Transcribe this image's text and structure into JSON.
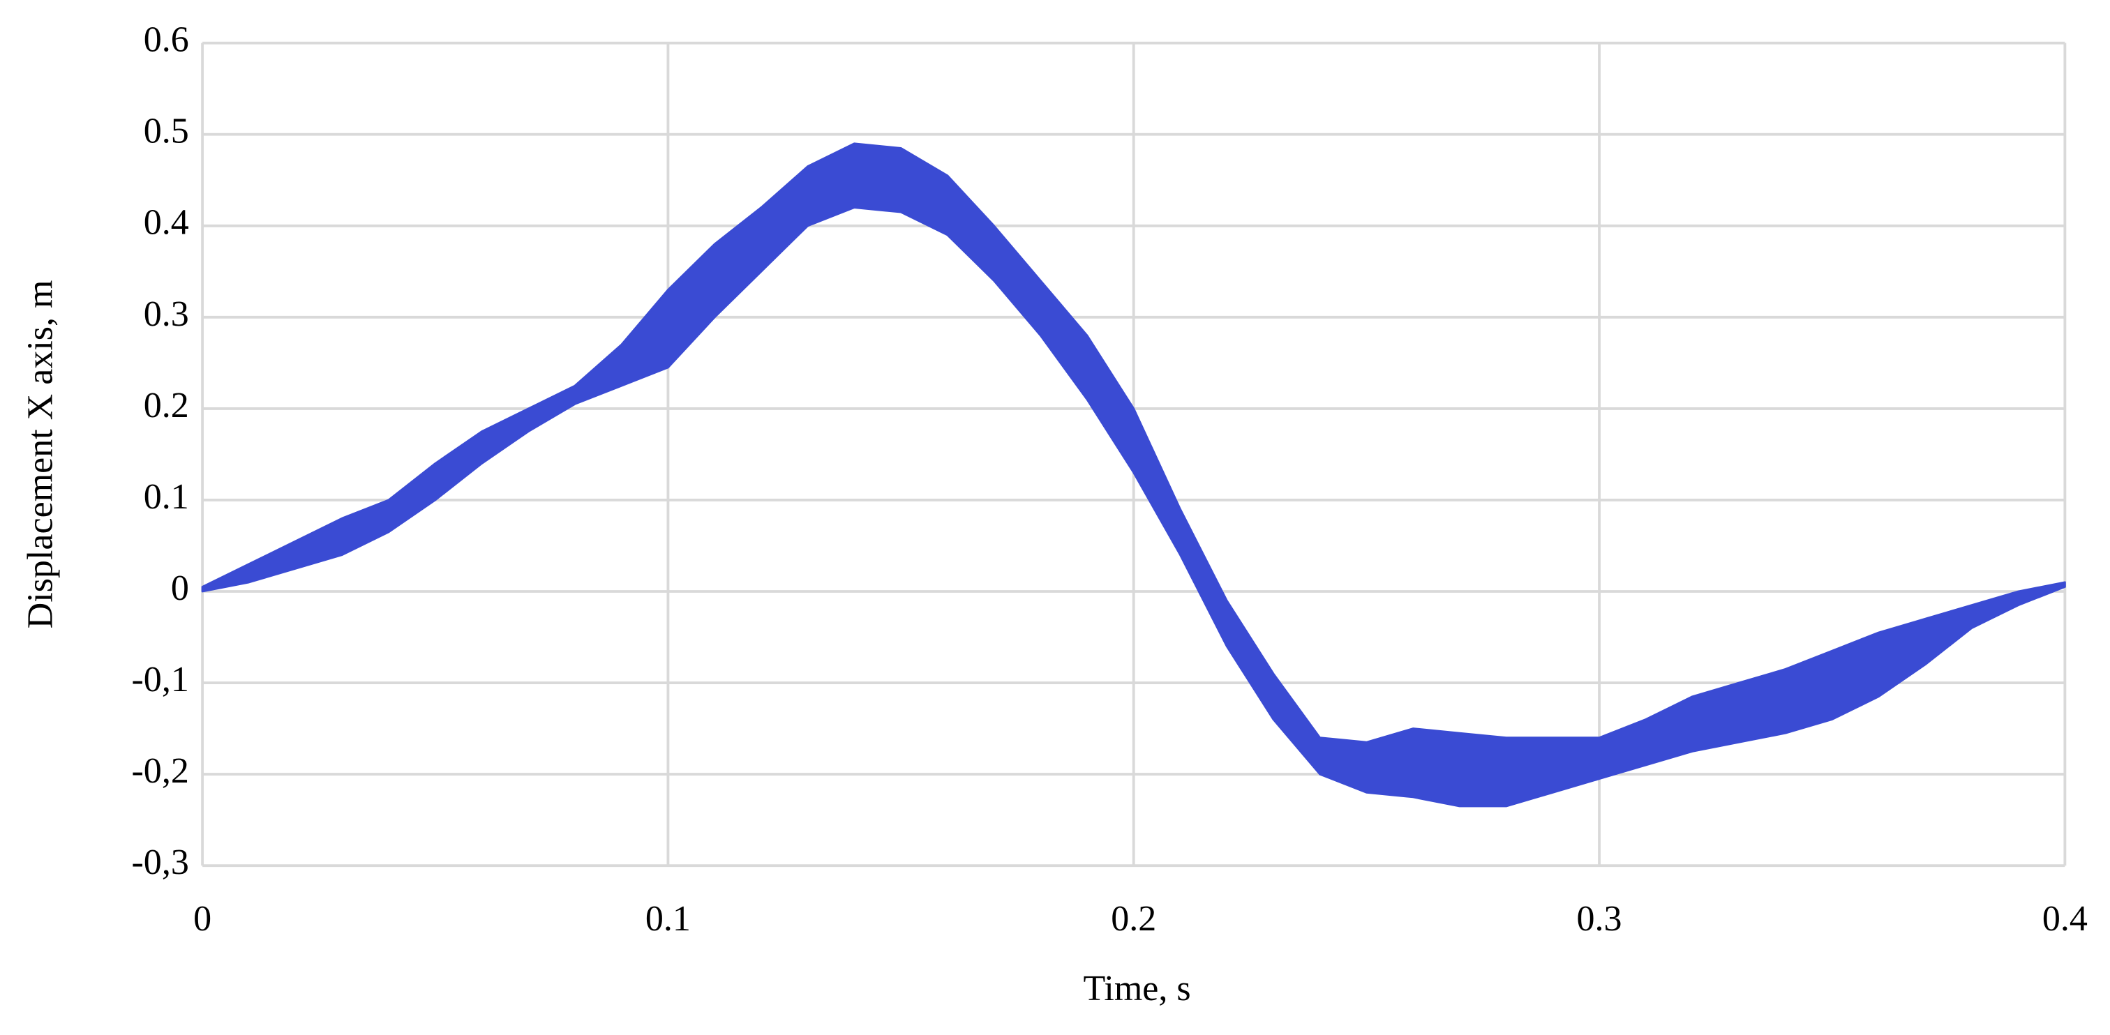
{
  "chart_data": {
    "type": "band",
    "color": "#3a4bd3",
    "grid": true,
    "x_label": "Time, s",
    "y_label": "Displacement X axis, m",
    "x": [
      0,
      0.01,
      0.02,
      0.03,
      0.04,
      0.05,
      0.06,
      0.07,
      0.08,
      0.09,
      0.1,
      0.11,
      0.12,
      0.13,
      0.14,
      0.15,
      0.16,
      0.17,
      0.18,
      0.19,
      0.2,
      0.21,
      0.22,
      0.23,
      0.24,
      0.25,
      0.26,
      0.27,
      0.28,
      0.29,
      0.3,
      0.31,
      0.32,
      0.33,
      0.34,
      0.35,
      0.36,
      0.37,
      0.38,
      0.39,
      0.4
    ],
    "lower": [
      0,
      0.01,
      0.025,
      0.04,
      0.065,
      0.1,
      0.14,
      0.175,
      0.205,
      0.225,
      0.245,
      0.3,
      0.35,
      0.4,
      0.42,
      0.415,
      0.39,
      0.34,
      0.28,
      0.21,
      0.13,
      0.04,
      -0.06,
      -0.14,
      -0.2,
      -0.22,
      -0.225,
      -0.235,
      -0.235,
      -0.22,
      -0.205,
      -0.19,
      -0.175,
      -0.165,
      -0.155,
      -0.14,
      -0.115,
      -0.08,
      -0.04,
      -0.015,
      0.005
    ],
    "upper": [
      0.005,
      0.03,
      0.055,
      0.08,
      0.1,
      0.14,
      0.175,
      0.2,
      0.225,
      0.27,
      0.33,
      0.38,
      0.42,
      0.465,
      0.49,
      0.485,
      0.455,
      0.4,
      0.34,
      0.28,
      0.2,
      0.09,
      -0.01,
      -0.09,
      -0.16,
      -0.165,
      -0.15,
      -0.155,
      -0.16,
      -0.16,
      -0.16,
      -0.14,
      -0.115,
      -0.1,
      -0.085,
      -0.065,
      -0.045,
      -0.03,
      -0.015,
      0,
      0.01
    ],
    "xlim": [
      0,
      0.4
    ],
    "xticks": [
      0,
      0.1,
      0.2,
      0.3,
      0.4
    ],
    "ylim": [
      -0.3,
      0.6
    ],
    "yticks": [
      {
        "value": -0.3,
        "label": "-0,3"
      },
      {
        "value": -0.2,
        "label": "-0,2"
      },
      {
        "value": -0.1,
        "label": "-0,1"
      },
      0,
      0.1,
      0.2,
      0.3,
      0.4,
      0.5,
      0.6
    ]
  }
}
